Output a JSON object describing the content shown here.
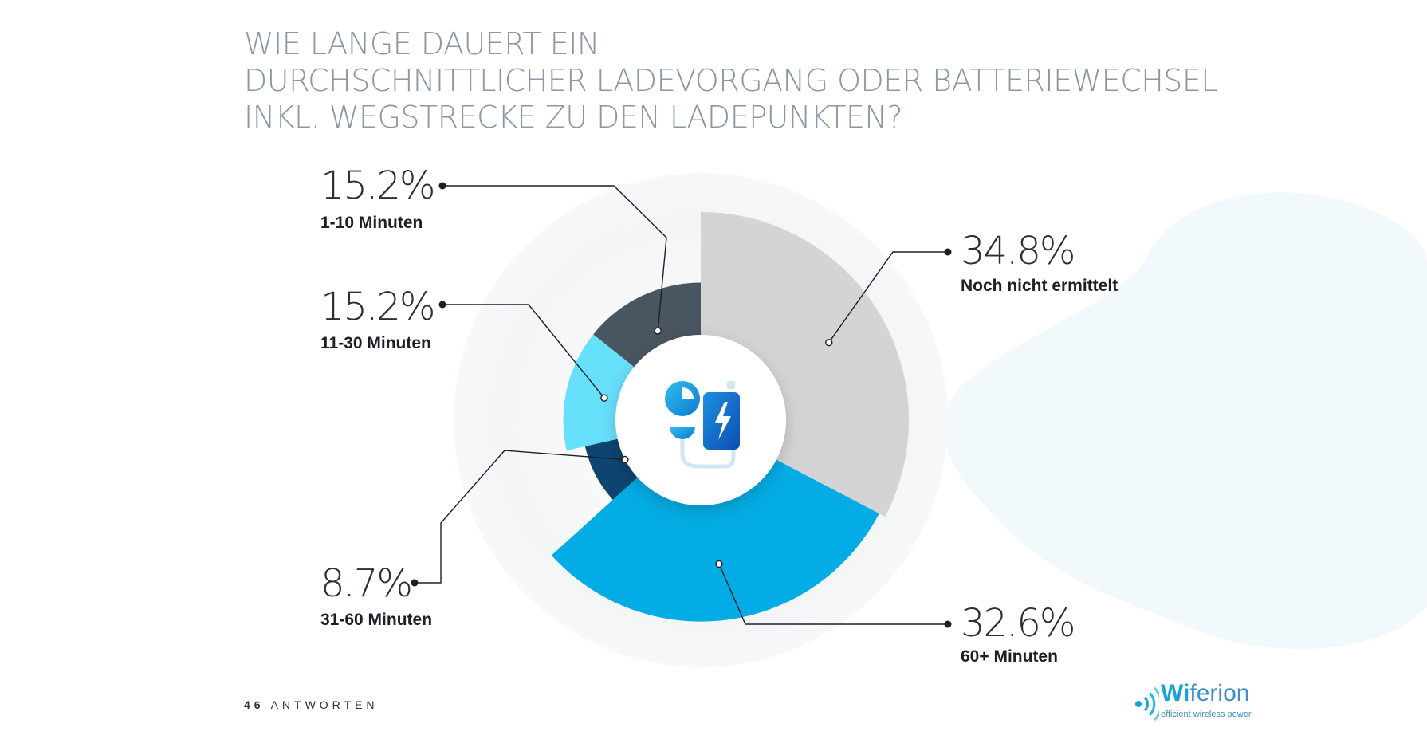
{
  "title_lines": [
    "WIE LANGE DAUERT EIN",
    "DURCHSCHNITTLICHER LADEVORGANG ODER BATTERIEWECHSEL",
    "INKL. WEGSTRECKE ZU DEN LADEPUNKTEN?"
  ],
  "footer": {
    "page": "46",
    "section": "ANTWORTEN"
  },
  "logo": {
    "bold": "Wi",
    "rest": "ferion",
    "tagline": "efficient wireless power"
  },
  "center_icon": "charger-battery-icon",
  "chart_data": {
    "type": "pie",
    "variant": "polar-area",
    "title": "WIE LANGE DAUERT EIN DURCHSCHNITTLICHER LADEVORGANG ODER BATTERIEWECHSEL INKL. WEGSTRECKE ZU DEN LADEPUNKTEN?",
    "slices": [
      {
        "label": "Noch nicht ermittelt",
        "value": 34.8,
        "display": "34.8%",
        "color": "#d4d4d4"
      },
      {
        "label": "60+ Minuten",
        "value": 32.6,
        "display": "32.6%",
        "color": "#03ace4"
      },
      {
        "label": "31-60 Minuten",
        "value": 8.7,
        "display": "8.7%",
        "color": "#0d4470"
      },
      {
        "label": "11-30 Minuten",
        "value": 15.2,
        "display": "15.2%",
        "color": "#67e0fb"
      },
      {
        "label": "1-10 Minuten",
        "value": 15.2,
        "display": "15.2%",
        "color": "#4a5562"
      }
    ],
    "start": "top",
    "direction": "clockwise"
  }
}
